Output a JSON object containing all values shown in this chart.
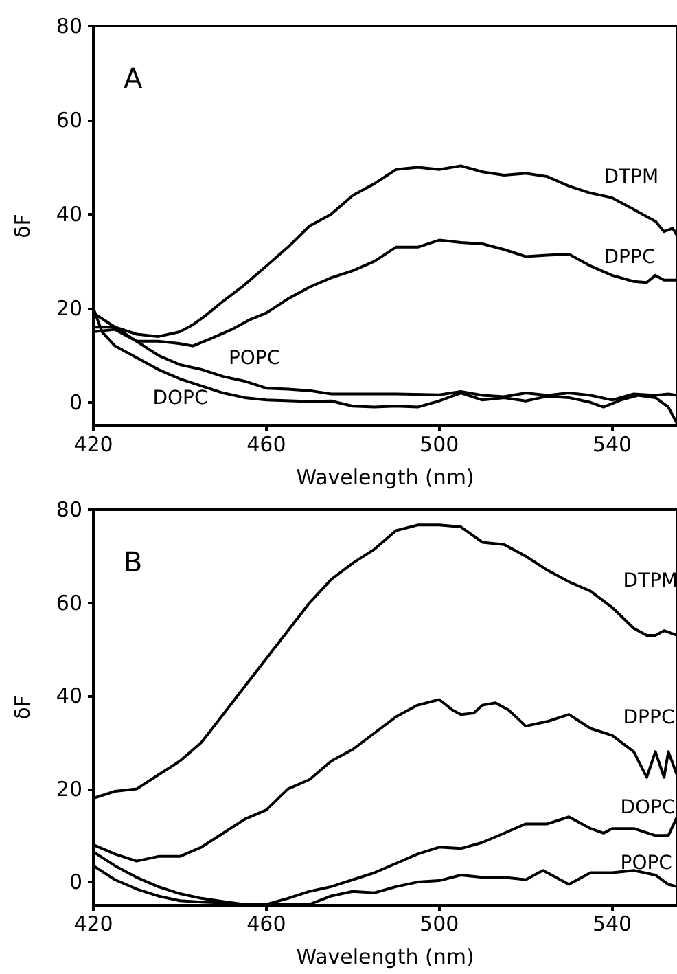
{
  "chart_data": [
    {
      "type": "line",
      "xlabel": "Wavelength (nm)",
      "ylabel": "δF",
      "xlim": [
        420,
        555
      ],
      "xticks": [
        420,
        460,
        500,
        540
      ],
      "ylim": [
        -5,
        80
      ],
      "yticks": [
        0,
        20,
        40,
        60,
        80
      ],
      "grid": false,
      "legend": false,
      "marker": "none",
      "line_style": "solid",
      "annotations": [
        "A"
      ],
      "series": [
        {
          "name": "DTPM",
          "color": "#000000",
          "x": [
            420,
            425,
            430,
            435,
            440,
            443,
            446,
            450,
            455,
            460,
            465,
            470,
            475,
            480,
            485,
            490,
            495,
            500,
            505,
            510,
            515,
            520,
            525,
            530,
            535,
            540,
            545,
            550,
            552,
            554,
            555
          ],
          "values": [
            16,
            16,
            14.5,
            14,
            15,
            16.5,
            18.5,
            21.5,
            25,
            29,
            33,
            37.5,
            40,
            44,
            46.5,
            49.5,
            50,
            49.5,
            50.3,
            49,
            48.3,
            48.7,
            48,
            46,
            44.5,
            43.5,
            41,
            38.5,
            36.3,
            37,
            35.5
          ]
        },
        {
          "name": "DPPC",
          "color": "#000000",
          "x": [
            420,
            425,
            430,
            435,
            440,
            443,
            447,
            452,
            456,
            460,
            465,
            470,
            475,
            480,
            485,
            490,
            495,
            500,
            505,
            510,
            515,
            520,
            525,
            530,
            535,
            540,
            545,
            548,
            550,
            552,
            555
          ],
          "values": [
            15,
            15.5,
            13,
            13,
            12.5,
            12,
            13.5,
            15.5,
            17.5,
            19,
            22,
            24.5,
            26.5,
            28,
            30,
            33,
            33,
            34.5,
            34,
            33.7,
            32.5,
            31,
            31.3,
            31.5,
            29,
            27,
            25.7,
            25.5,
            27,
            26,
            26
          ]
        },
        {
          "name": "POPC",
          "color": "#000000",
          "x": [
            420,
            425,
            430,
            435,
            440,
            445,
            450,
            455,
            460,
            465,
            470,
            475,
            480,
            490,
            500,
            505,
            510,
            515,
            520,
            525,
            530,
            535,
            540,
            545,
            550,
            553,
            555
          ],
          "values": [
            19,
            16,
            13,
            10,
            8,
            7,
            5.5,
            4.5,
            3,
            2.8,
            2.5,
            1.8,
            1.8,
            1.8,
            1.6,
            2.3,
            1.5,
            1.2,
            2,
            1.5,
            2,
            1.5,
            0.5,
            1.8,
            1.5,
            1.8,
            1.5
          ]
        },
        {
          "name": "DOPC",
          "color": "#000000",
          "x": [
            420,
            422,
            425,
            430,
            435,
            440,
            445,
            450,
            455,
            460,
            470,
            475,
            480,
            485,
            490,
            495,
            500,
            505,
            510,
            515,
            520,
            525,
            530,
            535,
            538,
            542,
            546,
            550,
            553,
            555
          ],
          "values": [
            20,
            15,
            12,
            9.5,
            7,
            5,
            3.5,
            2,
            1,
            0.5,
            0.2,
            0.3,
            -0.8,
            -1,
            -0.8,
            -1,
            0.3,
            2,
            0.5,
            1,
            0.3,
            1.3,
            1,
            0,
            -1,
            0.5,
            1.5,
            1,
            -1,
            -4.5
          ]
        }
      ]
    },
    {
      "type": "line",
      "xlabel": "Wavelength (nm)",
      "ylabel": "δF",
      "xlim": [
        420,
        555
      ],
      "xticks": [
        420,
        460,
        500,
        540
      ],
      "ylim": [
        -5,
        80
      ],
      "yticks": [
        0,
        20,
        40,
        60,
        80
      ],
      "grid": false,
      "legend": false,
      "marker": "none",
      "line_style": "solid",
      "annotations": [
        "B"
      ],
      "series": [
        {
          "name": "DTPM",
          "color": "#000000",
          "x": [
            420,
            425,
            430,
            435,
            440,
            445,
            450,
            455,
            460,
            465,
            470,
            475,
            480,
            485,
            490,
            495,
            500,
            505,
            510,
            515,
            520,
            525,
            530,
            535,
            540,
            545,
            548,
            550,
            552,
            555
          ],
          "values": [
            18,
            19.5,
            20,
            23,
            26,
            30,
            36,
            42,
            48,
            54,
            60,
            65,
            68.5,
            71.5,
            75.5,
            76.7,
            76.7,
            76.3,
            73,
            72.5,
            70,
            67,
            64.5,
            62.5,
            59,
            54.5,
            53,
            53,
            54,
            53
          ]
        },
        {
          "name": "DPPC",
          "color": "#000000",
          "x": [
            420,
            425,
            430,
            435,
            440,
            445,
            450,
            455,
            460,
            465,
            470,
            475,
            480,
            485,
            490,
            495,
            500,
            503,
            505,
            508,
            510,
            513,
            516,
            520,
            525,
            530,
            535,
            540,
            545,
            548,
            550,
            552,
            553,
            555
          ],
          "values": [
            8,
            6,
            4.5,
            5.5,
            5.5,
            7.5,
            10.5,
            13.5,
            15.5,
            20,
            22,
            26,
            28.5,
            32,
            35.5,
            38,
            39.2,
            37,
            36,
            36.3,
            38,
            38.5,
            37,
            33.5,
            34.5,
            36,
            33,
            31.5,
            28,
            22.5,
            28,
            22.5,
            28,
            23
          ]
        },
        {
          "name": "DOPC",
          "color": "#000000",
          "x": [
            420,
            425,
            430,
            435,
            440,
            445,
            450,
            455,
            460,
            465,
            470,
            475,
            480,
            485,
            490,
            495,
            500,
            505,
            510,
            515,
            520,
            525,
            530,
            535,
            538,
            540,
            545,
            550,
            553,
            555
          ],
          "values": [
            6.5,
            3.5,
            1,
            -1,
            -2.5,
            -3.5,
            -4.2,
            -4.8,
            -4.8,
            -3.5,
            -2,
            -1,
            0.5,
            2,
            4,
            6,
            7.5,
            7.2,
            8.5,
            10.5,
            12.5,
            12.5,
            14,
            11.5,
            10.5,
            11.5,
            11.5,
            10,
            10,
            14
          ]
        },
        {
          "name": "POPC",
          "color": "#000000",
          "x": [
            420,
            425,
            430,
            435,
            440,
            445,
            450,
            455,
            460,
            465,
            470,
            475,
            480,
            485,
            490,
            495,
            500,
            505,
            510,
            515,
            520,
            524,
            530,
            535,
            540,
            545,
            550,
            553,
            555
          ],
          "values": [
            3.5,
            0.5,
            -1.5,
            -3,
            -4,
            -4.3,
            -4.5,
            -4.8,
            -4.8,
            -4.8,
            -4.8,
            -3,
            -2,
            -2.3,
            -1,
            0,
            0.3,
            1.5,
            1,
            1,
            0.5,
            2.5,
            -0.5,
            2,
            2,
            2.5,
            1.5,
            -0.5,
            -1
          ]
        }
      ]
    }
  ]
}
